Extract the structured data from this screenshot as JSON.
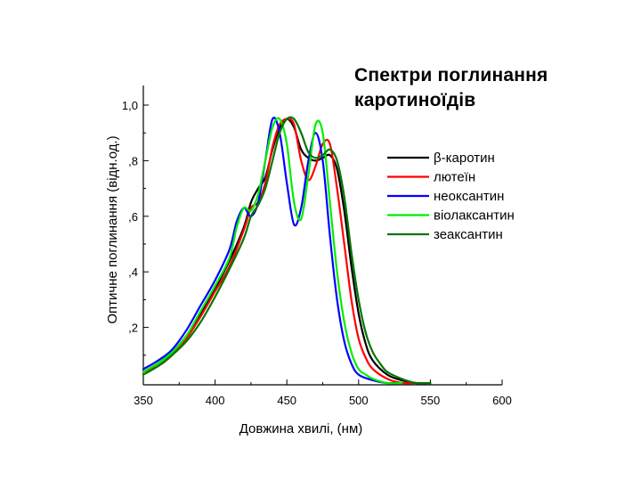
{
  "chart_data": {
    "type": "line",
    "title_lines": [
      "Спектри поглинання",
      "каротиноїдів"
    ],
    "xlabel": "Довжина хвилі, (нм)",
    "ylabel": "Оптичне поглинання (відн.од.)",
    "xlim": [
      350,
      600
    ],
    "ylim": [
      0,
      1.05
    ],
    "xticks": [
      350,
      400,
      450,
      500,
      550,
      600
    ],
    "yticks": [
      0.2,
      0.4,
      0.6,
      0.8,
      1.0
    ],
    "yticklabels": [
      ",2",
      ",4",
      ",6",
      ",8",
      "1,0"
    ],
    "grid": false,
    "legend_position": "right",
    "series": [
      {
        "name": "β-каротин",
        "color": "#000000",
        "x": [
          350,
          360,
          370,
          380,
          390,
          400,
          410,
          420,
          425,
          430,
          435,
          440,
          445,
          450,
          455,
          460,
          465,
          470,
          475,
          480,
          485,
          490,
          495,
          500,
          505,
          510,
          520,
          530,
          540,
          550
        ],
        "y": [
          0.04,
          0.07,
          0.11,
          0.17,
          0.25,
          0.34,
          0.44,
          0.56,
          0.65,
          0.7,
          0.74,
          0.84,
          0.92,
          0.95,
          0.92,
          0.84,
          0.81,
          0.8,
          0.81,
          0.82,
          0.77,
          0.62,
          0.42,
          0.25,
          0.14,
          0.08,
          0.03,
          0.01,
          0.0,
          0.0
        ]
      },
      {
        "name": "лютеїн",
        "color": "#ff0000",
        "x": [
          350,
          360,
          370,
          380,
          390,
          400,
          410,
          420,
          425,
          430,
          435,
          440,
          445,
          450,
          455,
          460,
          465,
          470,
          475,
          480,
          485,
          490,
          495,
          500,
          505,
          510,
          520,
          530,
          540
        ],
        "y": [
          0.04,
          0.06,
          0.1,
          0.16,
          0.24,
          0.33,
          0.42,
          0.55,
          0.63,
          0.65,
          0.72,
          0.85,
          0.93,
          0.95,
          0.93,
          0.8,
          0.73,
          0.78,
          0.86,
          0.86,
          0.7,
          0.5,
          0.3,
          0.16,
          0.09,
          0.05,
          0.015,
          0.0,
          0.0
        ]
      },
      {
        "name": "неоксантин",
        "color": "#0000ff",
        "x": [
          350,
          360,
          370,
          380,
          390,
          400,
          410,
          415,
          420,
          425,
          430,
          435,
          440,
          445,
          450,
          455,
          460,
          465,
          470,
          475,
          480,
          485,
          490,
          495,
          500,
          510,
          520,
          530
        ],
        "y": [
          0.05,
          0.08,
          0.12,
          0.19,
          0.28,
          0.37,
          0.48,
          0.58,
          0.63,
          0.6,
          0.65,
          0.8,
          0.95,
          0.9,
          0.72,
          0.57,
          0.63,
          0.8,
          0.9,
          0.8,
          0.53,
          0.3,
          0.15,
          0.07,
          0.03,
          0.01,
          0.0,
          0.0
        ]
      },
      {
        "name": "віолаксантин",
        "color": "#00ee00",
        "x": [
          350,
          360,
          370,
          380,
          390,
          400,
          410,
          415,
          420,
          425,
          430,
          435,
          440,
          445,
          450,
          455,
          460,
          465,
          470,
          475,
          480,
          485,
          490,
          495,
          500,
          505,
          510,
          520,
          530
        ],
        "y": [
          0.04,
          0.07,
          0.11,
          0.17,
          0.26,
          0.35,
          0.45,
          0.56,
          0.63,
          0.62,
          0.68,
          0.8,
          0.92,
          0.95,
          0.86,
          0.65,
          0.59,
          0.75,
          0.93,
          0.9,
          0.65,
          0.4,
          0.22,
          0.11,
          0.05,
          0.03,
          0.015,
          0.0,
          0.0
        ]
      },
      {
        "name": "зеаксантин",
        "color": "#007700",
        "x": [
          350,
          360,
          370,
          380,
          390,
          400,
          410,
          420,
          425,
          430,
          435,
          440,
          445,
          450,
          455,
          460,
          465,
          470,
          475,
          480,
          485,
          490,
          495,
          500,
          505,
          510,
          515,
          520,
          530,
          540,
          550
        ],
        "y": [
          0.03,
          0.06,
          0.1,
          0.15,
          0.22,
          0.31,
          0.41,
          0.52,
          0.6,
          0.64,
          0.7,
          0.8,
          0.9,
          0.95,
          0.95,
          0.9,
          0.83,
          0.81,
          0.82,
          0.84,
          0.8,
          0.67,
          0.47,
          0.3,
          0.18,
          0.11,
          0.07,
          0.04,
          0.015,
          0.0,
          0.0
        ]
      }
    ]
  }
}
